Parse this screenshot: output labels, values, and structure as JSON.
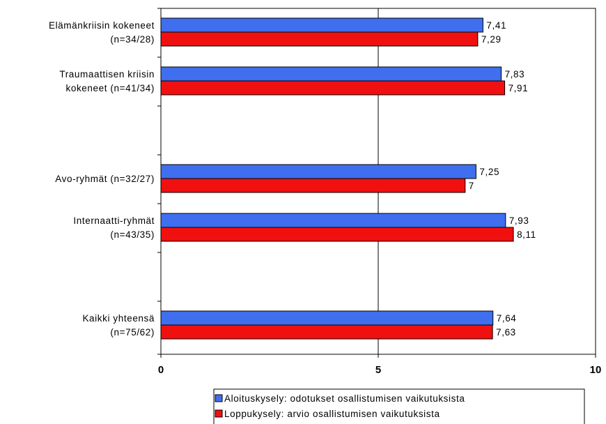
{
  "chart_data": {
    "type": "bar",
    "orientation": "horizontal",
    "categories": [
      [
        "Elämänkriisin kokeneet",
        "(n=34/28)"
      ],
      [
        "Traumaattisen kriisin",
        "kokeneet (n=41/34)"
      ],
      [
        "Avo-ryhmät (n=32/27)"
      ],
      [
        "Internaatti-ryhmät",
        "(n=43/35)"
      ],
      [
        "Kaikki yhteensä",
        "(n=75/62)"
      ]
    ],
    "series": [
      {
        "name": "Aloituskysely: odotukset osallistumisen vaikutuksista",
        "color": "#3F6FEF",
        "values": [
          7.41,
          7.83,
          7.25,
          7.93,
          7.64
        ],
        "labels": [
          "7,41",
          "7,83",
          "7,25",
          "7,93",
          "7,64"
        ]
      },
      {
        "name": "Loppukysely: arvio osallistumisen vaikutuksista",
        "color": "#F01010",
        "values": [
          7.29,
          7.91,
          7.0,
          8.11,
          7.63
        ],
        "labels": [
          "7,29",
          "7,91",
          "7",
          "8,11",
          "7,63"
        ]
      }
    ],
    "xlim": [
      0,
      10
    ],
    "xticks": [
      0,
      5,
      10
    ],
    "xtick_labels": [
      "0",
      "5",
      "10"
    ],
    "grid": "vertical at 5",
    "legend_position": "bottom"
  }
}
